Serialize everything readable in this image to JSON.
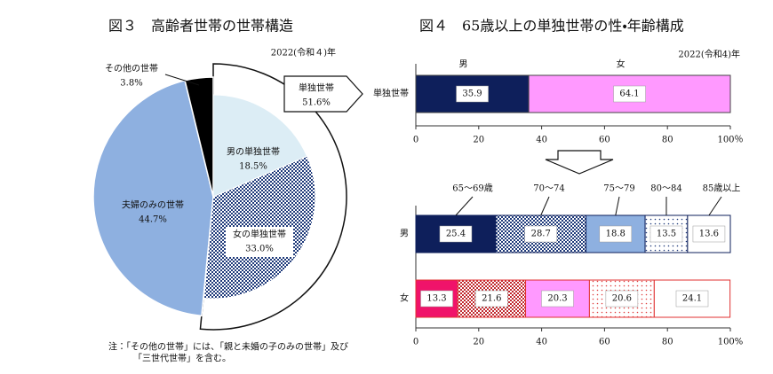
{
  "chart_data": [
    {
      "type": "pie-of-pie",
      "title": "図３　高齢者世帯の世帯構造",
      "subtitle": "2022(令和４)年",
      "categories": [
        "単独世帯",
        "夫婦のみの世帯",
        "その他の世帯"
      ],
      "values": [
        51.6,
        44.7,
        3.8
      ],
      "value_labels": [
        "51.6%",
        "44.7%",
        "3.8%"
      ],
      "colors": [
        "#ffffff",
        "#8eb0e0",
        "#000000"
      ],
      "breakdown": {
        "categories": [
          "男の単独世帯",
          "女の単独世帯"
        ],
        "values": [
          18.5,
          33.0
        ],
        "value_labels": [
          "18.5%",
          "33.0%"
        ],
        "colors": [
          "#dcedf5",
          "#1f3a7a"
        ],
        "patterns": [
          "none",
          "check"
        ]
      },
      "note": [
        "注：「その他の世帯」には、「親と未婚の子のみの世帯」及び",
        "「三世代世帯」を含む。"
      ]
    },
    {
      "type": "stacked-bar-h",
      "title": "図４　65歳以上の単独世帯の性・年齢構成",
      "subtitle": "2022(令和4)年",
      "categories": [
        "単独世帯"
      ],
      "series": [
        {
          "name": "男",
          "colors": [
            "#0e1f5b"
          ],
          "values": [
            35.9
          ]
        },
        {
          "name": "女",
          "colors": [
            "#ff99ff"
          ],
          "values": [
            64.1
          ]
        }
      ],
      "xlim": [
        0,
        100
      ],
      "xticks": [
        0,
        20,
        40,
        60,
        80,
        {
          "value": 100,
          "label": "100％"
        }
      ]
    },
    {
      "type": "stacked-bar-h",
      "categories": [
        "男",
        "女"
      ],
      "edge_colors": [
        "#0e1f5b",
        "#e03030"
      ],
      "series": [
        {
          "name": "65～69歳",
          "colors": [
            "#0e1f5b",
            "#f0136a"
          ],
          "patterns": [
            "none",
            "none"
          ],
          "values": [
            25.4,
            13.3
          ]
        },
        {
          "name": "70～74",
          "colors": [
            "#1f3a7a",
            "#c0282e"
          ],
          "patterns": [
            "check",
            "check"
          ],
          "values": [
            28.7,
            21.6
          ]
        },
        {
          "name": "75～79",
          "colors": [
            "#8eb0e0",
            "#ff99ff"
          ],
          "patterns": [
            "none",
            "none"
          ],
          "values": [
            18.8,
            20.3
          ]
        },
        {
          "name": "80～84",
          "colors": [
            "#1f3a7a",
            "#e04040"
          ],
          "patterns": [
            "dots",
            "dots"
          ],
          "values": [
            13.5,
            20.6
          ]
        },
        {
          "name": "85歳以上",
          "colors": [
            "#ffffff",
            "#ffffff"
          ],
          "patterns": [
            "none",
            "none"
          ],
          "values": [
            13.6,
            24.1
          ]
        }
      ],
      "xlim": [
        0,
        100
      ],
      "xticks": [
        0,
        20,
        40,
        60,
        80,
        {
          "value": 100,
          "label": "100%"
        }
      ]
    }
  ]
}
